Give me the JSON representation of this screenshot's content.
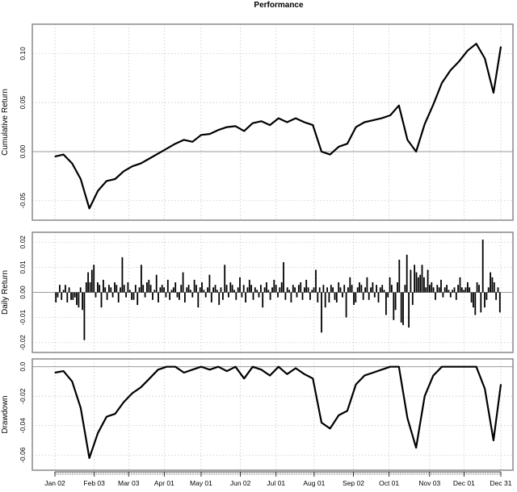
{
  "title": "Performance",
  "chart_data": [
    {
      "type": "line",
      "panel": "cumulative",
      "ylabel": "Cumulative Return",
      "ylim": [
        -0.065,
        0.125
      ],
      "yticks": [
        -0.05,
        0.0,
        0.05,
        0.1
      ],
      "ytick_labels": [
        "-0.05",
        "0.00",
        "0.05",
        "0.10"
      ],
      "grid": true,
      "series": [
        {
          "x": [
            "2001-01-02",
            "2001-01-09",
            "2001-01-16",
            "2001-01-23",
            "2001-01-30",
            "2001-02-06",
            "2001-02-13",
            "2001-02-20",
            "2001-02-27",
            "2001-03-06",
            "2001-03-13",
            "2001-03-20",
            "2001-03-27",
            "2001-04-03",
            "2001-04-10",
            "2001-04-17",
            "2001-04-24",
            "2001-05-01",
            "2001-05-08",
            "2001-05-15",
            "2001-05-22",
            "2001-05-29",
            "2001-06-05",
            "2001-06-12",
            "2001-06-19",
            "2001-06-26",
            "2001-07-03",
            "2001-07-10",
            "2001-07-17",
            "2001-07-24",
            "2001-07-31",
            "2001-08-07",
            "2001-08-14",
            "2001-08-21",
            "2001-08-28",
            "2001-09-04",
            "2001-09-11",
            "2001-09-18",
            "2001-09-25",
            "2001-10-02",
            "2001-10-09",
            "2001-10-16",
            "2001-10-23",
            "2001-10-30",
            "2001-11-06",
            "2001-11-13",
            "2001-11-20",
            "2001-11-27",
            "2001-12-04",
            "2001-12-11",
            "2001-12-18",
            "2001-12-25",
            "2001-12-31"
          ],
          "values": [
            -0.005,
            -0.003,
            -0.012,
            -0.028,
            -0.058,
            -0.04,
            -0.03,
            -0.028,
            -0.02,
            -0.015,
            -0.012,
            -0.007,
            -0.002,
            0.003,
            0.008,
            0.012,
            0.01,
            0.017,
            0.018,
            0.022,
            0.025,
            0.026,
            0.021,
            0.029,
            0.031,
            0.027,
            0.034,
            0.03,
            0.034,
            0.03,
            0.027,
            0.0,
            -0.003,
            0.005,
            0.008,
            0.025,
            0.03,
            0.032,
            0.034,
            0.037,
            0.047,
            0.012,
            0.0,
            0.028,
            0.048,
            0.07,
            0.083,
            0.092,
            0.103,
            0.11,
            0.095,
            0.06,
            0.107
          ]
        }
      ]
    },
    {
      "type": "bar",
      "panel": "daily",
      "ylabel": "Daily Return",
      "ylim": [
        -0.022,
        0.022
      ],
      "yticks": [
        -0.02,
        -0.01,
        0.0,
        0.01,
        0.02
      ],
      "ytick_labels": [
        "-0.02",
        "-0.01",
        "0.00",
        "0.01",
        "0.02"
      ],
      "grid": true,
      "series": [
        {
          "x_range": [
            "2001-01-02",
            "2001-12-31"
          ],
          "values": [
            -0.004,
            -0.002,
            0.003,
            -0.003,
            0.001,
            0.003,
            -0.004,
            0.002,
            -0.003,
            -0.003,
            -0.002,
            -0.005,
            -0.006,
            0.002,
            -0.007,
            -0.019,
            0.004,
            0.008,
            0.004,
            0.009,
            0.011,
            -0.002,
            0.004,
            0.003,
            -0.006,
            0.005,
            0.002,
            -0.003,
            0.003,
            0.002,
            -0.002,
            0.004,
            0.003,
            -0.004,
            0.002,
            0.014,
            0.003,
            -0.002,
            0.004,
            0.001,
            -0.003,
            -0.003,
            0.003,
            -0.005,
            0.002,
            0.011,
            0.003,
            -0.002,
            0.004,
            0.005,
            0.003,
            -0.003,
            0.001,
            0.007,
            -0.004,
            0.002,
            0.003,
            0.002,
            -0.002,
            0.005,
            -0.003,
            0.001,
            0.002,
            0.004,
            -0.002,
            -0.003,
            0.003,
            0.008,
            -0.004,
            0.002,
            0.003,
            0.001,
            -0.002,
            0.005,
            0.003,
            -0.006,
            0.002,
            0.004,
            0.001,
            -0.002,
            0.002,
            0.007,
            -0.004,
            0.002,
            0.003,
            0.001,
            -0.005,
            0.002,
            -0.003,
            0.011,
            0.003,
            -0.002,
            0.004,
            0.003,
            0.001,
            -0.003,
            0.002,
            0.006,
            -0.002,
            0.003,
            -0.004,
            0.002,
            0.005,
            0.003,
            -0.003,
            0.002,
            0.001,
            -0.002,
            0.003,
            -0.006,
            0.002,
            0.004,
            0.001,
            -0.003,
            0.002,
            0.005,
            0.003,
            -0.002,
            0.002,
            0.004,
            0.012,
            -0.003,
            0.002,
            0.001,
            -0.004,
            0.003,
            0.002,
            -0.002,
            0.003,
            0.004,
            -0.003,
            0.002,
            0.005,
            0.002,
            -0.003,
            0.001,
            0.002,
            0.009,
            -0.004,
            0.002,
            -0.016,
            0.003,
            -0.006,
            0.002,
            -0.004,
            0.003,
            0.002,
            -0.003,
            -0.004,
            0.004,
            0.002,
            -0.002,
            0.003,
            -0.01,
            0.002,
            0.006,
            0.003,
            -0.005,
            -0.004,
            0.002,
            0.004,
            0.003,
            -0.003,
            0.002,
            0.006,
            -0.003,
            0.002,
            0.004,
            -0.002,
            0.003,
            -0.004,
            0.002,
            0.003,
            0.001,
            -0.009,
            -0.002,
            0.006,
            0.003,
            -0.011,
            -0.007,
            0.004,
            0.013,
            -0.012,
            -0.013,
            0.003,
            0.015,
            -0.014,
            0.009,
            -0.005,
            0.011,
            0.008,
            0.006,
            0.007,
            0.011,
            0.006,
            0.002,
            0.009,
            0.003,
            0.004,
            0.002,
            -0.003,
            0.003,
            0.002,
            0.005,
            -0.002,
            0.002,
            0.003,
            0.001,
            -0.002,
            0.001,
            0.002,
            -0.003,
            0.003,
            0.006,
            0.002,
            0.001,
            0.002,
            0.004,
            0.002,
            -0.004,
            -0.006,
            -0.009,
            0.004,
            0.003,
            -0.008,
            0.021,
            -0.006,
            -0.003,
            0.002,
            0.008,
            0.006,
            0.004,
            -0.003,
            0.002,
            -0.008
          ]
        }
      ]
    },
    {
      "type": "line",
      "panel": "drawdown",
      "ylabel": "Drawdown",
      "ylim": [
        -0.067,
        0.002
      ],
      "yticks": [
        -0.06,
        -0.04,
        -0.02,
        0.0
      ],
      "ytick_labels": [
        "-0.06",
        "-0.04",
        "-0.02",
        "0.0"
      ],
      "grid": true,
      "series": [
        {
          "x": [
            "2001-01-02",
            "2001-01-09",
            "2001-01-16",
            "2001-01-23",
            "2001-01-30",
            "2001-02-06",
            "2001-02-13",
            "2001-02-20",
            "2001-02-27",
            "2001-03-06",
            "2001-03-13",
            "2001-03-20",
            "2001-03-27",
            "2001-04-03",
            "2001-04-10",
            "2001-04-17",
            "2001-04-24",
            "2001-05-01",
            "2001-05-08",
            "2001-05-15",
            "2001-05-22",
            "2001-05-29",
            "2001-06-05",
            "2001-06-12",
            "2001-06-19",
            "2001-06-26",
            "2001-07-03",
            "2001-07-10",
            "2001-07-17",
            "2001-07-24",
            "2001-07-31",
            "2001-08-07",
            "2001-08-14",
            "2001-08-21",
            "2001-08-28",
            "2001-09-04",
            "2001-09-11",
            "2001-09-18",
            "2001-09-25",
            "2001-10-02",
            "2001-10-09",
            "2001-10-16",
            "2001-10-23",
            "2001-10-30",
            "2001-11-06",
            "2001-11-13",
            "2001-11-20",
            "2001-11-27",
            "2001-12-04",
            "2001-12-11",
            "2001-12-18",
            "2001-12-25",
            "2001-12-31"
          ],
          "values": [
            -0.004,
            -0.003,
            -0.01,
            -0.028,
            -0.062,
            -0.045,
            -0.034,
            -0.032,
            -0.024,
            -0.018,
            -0.014,
            -0.008,
            -0.002,
            0.0,
            0.0,
            -0.004,
            -0.002,
            0.0,
            -0.002,
            0.0,
            -0.003,
            0.0,
            -0.008,
            0.0,
            -0.002,
            -0.006,
            0.0,
            -0.005,
            -0.001,
            -0.005,
            -0.008,
            -0.038,
            -0.042,
            -0.033,
            -0.03,
            -0.012,
            -0.006,
            -0.004,
            -0.002,
            0.0,
            0.0,
            -0.035,
            -0.055,
            -0.02,
            -0.006,
            0.0,
            0.0,
            0.0,
            0.0,
            0.0,
            -0.015,
            -0.05,
            -0.012
          ]
        }
      ]
    }
  ],
  "x_axis": {
    "tick_dates": [
      "2001-01-02",
      "2001-02-03",
      "2001-03-03",
      "2001-04-01",
      "2001-05-01",
      "2001-06-02",
      "2001-07-01",
      "2001-08-01",
      "2001-09-02",
      "2001-10-01",
      "2001-11-03",
      "2001-12-01",
      "2001-12-31"
    ],
    "tick_labels": [
      "Jan 02",
      "Feb 03",
      "Mar 03",
      "Apr 01",
      "May 01",
      "Jun 02",
      "Jul 01",
      "Aug 01",
      "Sep 02",
      "Oct 01",
      "Nov 03",
      "Dec 01",
      "Dec 31"
    ]
  }
}
